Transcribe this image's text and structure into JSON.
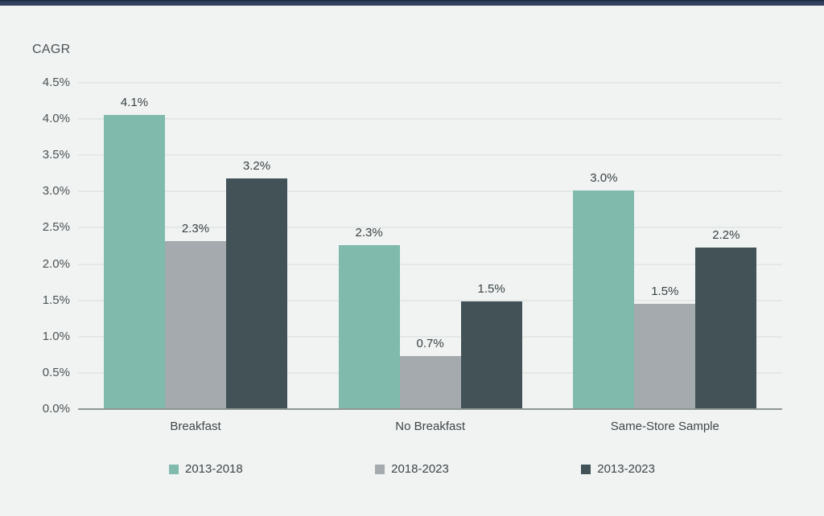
{
  "chart_data": {
    "type": "bar",
    "title": "CAGR",
    "categories": [
      "Breakfast",
      "No Breakfast",
      "Same-Store Sample"
    ],
    "series": [
      {
        "name": "2013-2018",
        "color": "#7fbaad",
        "values": [
          4.06,
          2.26,
          3.01
        ],
        "value_labels": [
          "4.1%",
          "2.3%",
          "3.0%"
        ]
      },
      {
        "name": "2018-2023",
        "color": "#a4aaad",
        "values": [
          2.32,
          0.73,
          1.45
        ],
        "value_labels": [
          "2.3%",
          "0.7%",
          "1.5%"
        ]
      },
      {
        "name": "2013-2023",
        "color": "#425257",
        "values": [
          3.18,
          1.49,
          2.23
        ],
        "value_labels": [
          "3.2%",
          "1.5%",
          "2.2%"
        ]
      }
    ],
    "y_axis": {
      "ticks": [
        "4.5%",
        "4.0%",
        "3.5%",
        "3.0%",
        "2.5%",
        "2.0%",
        "1.5%",
        "1.0%",
        "0.5%",
        "0.0%"
      ],
      "min": 0,
      "max": 4.5
    },
    "grid": true,
    "legend_position": "bottom",
    "colors": {
      "background": "#f0f3f2",
      "top_bar": "#31405f",
      "top_bar_edge": "#202d4a",
      "gridline": "#e3e8e7",
      "axis_line": "#8f9595",
      "text": "#3f464a"
    }
  }
}
